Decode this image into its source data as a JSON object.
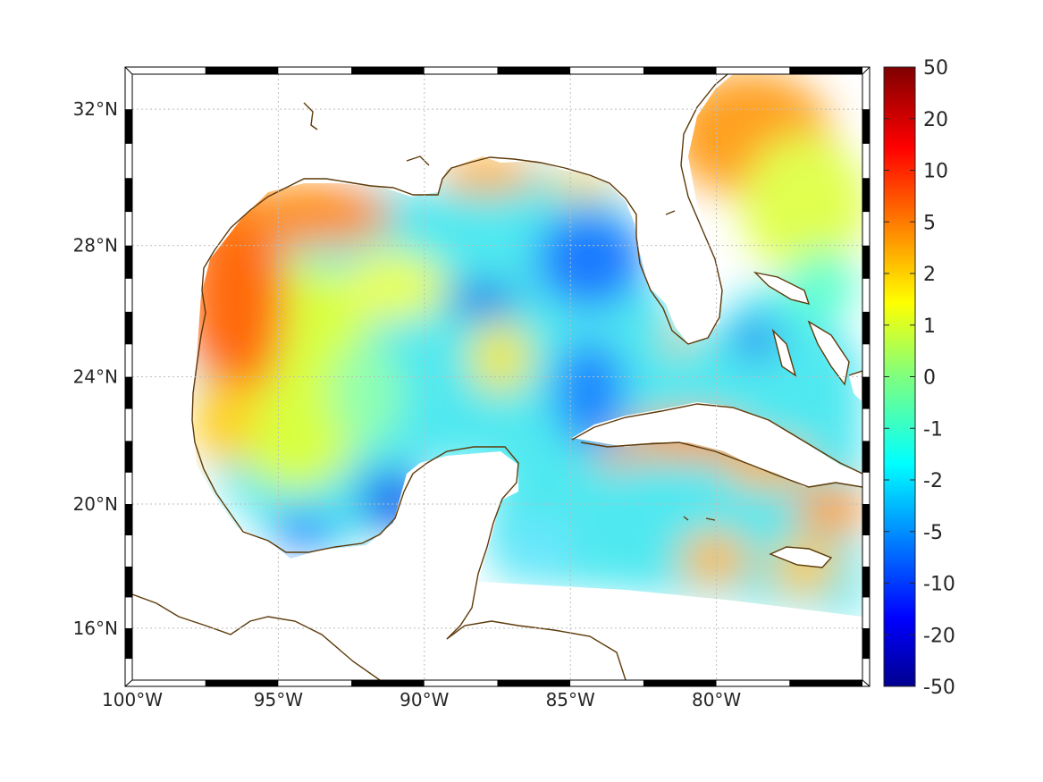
{
  "map": {
    "projection": "mercator",
    "lon_range": [
      -100,
      -75
    ],
    "lat_range": [
      14.3,
      33
    ],
    "grid": true,
    "lon_ticks": [
      {
        "value": -100,
        "label": "100°W"
      },
      {
        "value": -95,
        "label": "95°W"
      },
      {
        "value": -90,
        "label": "90°W"
      },
      {
        "value": -85,
        "label": "85°W"
      },
      {
        "value": -80,
        "label": "80°W"
      }
    ],
    "lat_ticks": [
      {
        "value": 16,
        "label": "16°N"
      },
      {
        "value": 20,
        "label": "20°N"
      },
      {
        "value": 24,
        "label": "24°N"
      },
      {
        "value": 28,
        "label": "28°N"
      },
      {
        "value": 32,
        "label": "32°N"
      }
    ],
    "coastline_color": "#5c3a0a",
    "frame_colors": [
      "#000000",
      "#ffffff"
    ]
  },
  "colorbar": {
    "colormap": "jet",
    "ticks": [
      "50",
      "20",
      "10",
      "5",
      "2",
      "1",
      "0",
      "-1",
      "-2",
      "-5",
      "-10",
      "-20",
      "-50"
    ]
  }
}
